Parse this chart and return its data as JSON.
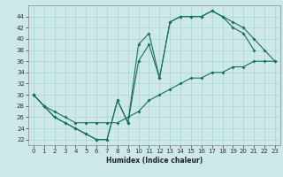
{
  "xlabel": "Humidex (Indice chaleur)",
  "bg_color": "#cce8e8",
  "grid_color": "#aad4d4",
  "line_color": "#1a7060",
  "xlim": [
    -0.5,
    23.5
  ],
  "ylim": [
    21,
    46
  ],
  "xticks": [
    0,
    1,
    2,
    3,
    4,
    5,
    6,
    7,
    8,
    9,
    10,
    11,
    12,
    13,
    14,
    15,
    16,
    17,
    18,
    19,
    20,
    21,
    22,
    23
  ],
  "yticks": [
    22,
    24,
    26,
    28,
    30,
    32,
    34,
    36,
    38,
    40,
    42,
    44
  ],
  "curve1_x": [
    0,
    1,
    2,
    3,
    4,
    5,
    6,
    7,
    8,
    9,
    10,
    11,
    12,
    13,
    14,
    15,
    16,
    17,
    18,
    19,
    20,
    21
  ],
  "curve1_y": [
    30,
    28,
    26,
    25,
    24,
    23,
    22,
    22,
    29,
    25,
    36,
    39,
    33,
    43,
    44,
    44,
    44,
    45,
    44,
    42,
    41,
    38
  ],
  "curve2_x": [
    0,
    1,
    2,
    3,
    4,
    5,
    6,
    7,
    8,
    9,
    10,
    11,
    12,
    13,
    14,
    15,
    16,
    17,
    18,
    19,
    20,
    21,
    22,
    23
  ],
  "curve2_y": [
    30,
    28,
    26,
    25,
    24,
    23,
    22,
    22,
    29,
    25,
    39,
    41,
    33,
    43,
    44,
    44,
    44,
    45,
    44,
    43,
    42,
    40,
    38,
    36
  ],
  "curve3_x": [
    0,
    1,
    2,
    3,
    4,
    5,
    6,
    7,
    8,
    9,
    10,
    11,
    12,
    13,
    14,
    15,
    16,
    17,
    18,
    19,
    20,
    21,
    22,
    23
  ],
  "curve3_y": [
    30,
    28,
    27,
    26,
    25,
    25,
    25,
    25,
    25,
    26,
    27,
    29,
    30,
    31,
    32,
    33,
    33,
    34,
    34,
    35,
    35,
    36,
    36,
    36
  ]
}
